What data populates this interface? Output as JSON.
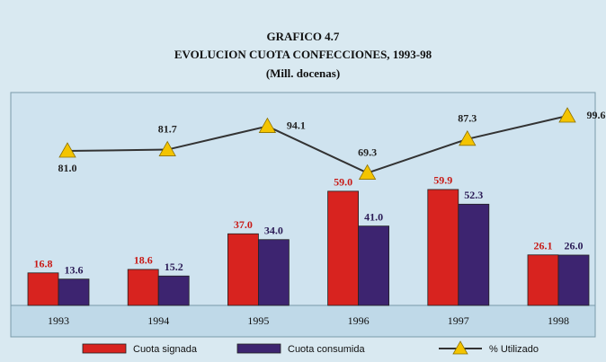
{
  "chart_data": {
    "type": "bar",
    "title": "GRAFICO 4.7",
    "subtitle": "EVOLUCION CUOTA CONFECCIONES, 1993-98",
    "unit_label": "(Mill. docenas)",
    "categories": [
      "1993",
      "1994",
      "1995",
      "1996",
      "1997",
      "1998"
    ],
    "ylim": [
      0,
      110
    ],
    "y2lim": [
      -1,
      112
    ],
    "series": [
      {
        "name": "Cuota signada",
        "color": "#d8231f",
        "values": [
          16.8,
          18.6,
          37.0,
          59.0,
          59.9,
          26.1
        ],
        "value_labels": [
          "16.8",
          "18.6",
          "37.0",
          "59.0",
          "59.9",
          "26.1"
        ]
      },
      {
        "name": "Cuota consumida",
        "color": "#3d2470",
        "values": [
          13.6,
          15.2,
          34.0,
          41.0,
          52.3,
          26.0
        ],
        "value_labels": [
          "13.6",
          "15.2",
          "34.0",
          "41.0",
          "52.3",
          "26.0"
        ]
      },
      {
        "name": "% Utilizado",
        "type": "line",
        "axis": "y2",
        "color": "#f4c400",
        "values": [
          81.0,
          81.7,
          94.1,
          69.3,
          87.3,
          99.6
        ],
        "value_labels": [
          "81.0",
          "81.7",
          "94.1",
          "69.3",
          "87.3",
          "99.6"
        ]
      }
    ]
  }
}
